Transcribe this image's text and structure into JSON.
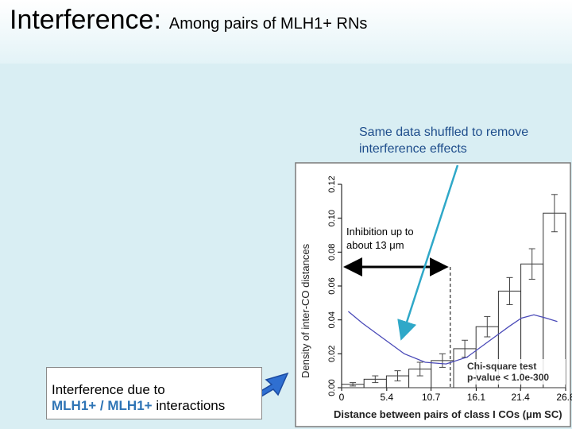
{
  "slide": {
    "title_main": "Interference:",
    "title_sub": "Among pairs of MLH1+ RNs",
    "shuffle_note": "Same data shuffled to remove interference effects",
    "interference_note": {
      "line1": "Interference due to",
      "pair": "MLH1+ / MLH1+",
      "suffix": "interactions"
    },
    "arrow_icon": "blue-arrow-icon",
    "colors": {
      "background": "#d9eef3",
      "accent_blue": "#1f4e8c",
      "arrow_blue": "#2f6fd1",
      "callout_line": "#2fa8c8",
      "curve": "#4a4ab8"
    }
  },
  "chart_data": {
    "type": "bar",
    "ylabel": "Density of inter-CO distances",
    "xlabel": "Distance between pairs of class I COs (μm SC)",
    "ylim": [
      0,
      0.12
    ],
    "xlim": [
      0,
      26.8
    ],
    "x_ticks": [
      "0",
      "5.4",
      "10.7",
      "16.1",
      "21.4",
      "26.8"
    ],
    "y_ticks": [
      "0.00",
      "0.02",
      "0.04",
      "0.06",
      "0.08",
      "0.10",
      "0.12"
    ],
    "bin_width": 2.68,
    "bars": [
      {
        "start": 0.0,
        "value": 0.002,
        "err": 0.001
      },
      {
        "start": 2.68,
        "value": 0.005,
        "err": 0.002
      },
      {
        "start": 5.36,
        "value": 0.007,
        "err": 0.003
      },
      {
        "start": 8.04,
        "value": 0.011,
        "err": 0.004
      },
      {
        "start": 10.72,
        "value": 0.016,
        "err": 0.004
      },
      {
        "start": 13.4,
        "value": 0.023,
        "err": 0.005
      },
      {
        "start": 16.08,
        "value": 0.036,
        "err": 0.006
      },
      {
        "start": 18.76,
        "value": 0.057,
        "err": 0.008
      },
      {
        "start": 21.44,
        "value": 0.073,
        "err": 0.009
      },
      {
        "start": 24.12,
        "value": 0.103,
        "err": 0.011
      }
    ],
    "shuffled_curve": {
      "x": [
        0.8,
        2.5,
        5.0,
        7.5,
        10.0,
        12.5,
        15.0,
        17.5,
        20.0,
        21.5,
        23.0,
        24.5,
        25.8
      ],
      "y": [
        0.045,
        0.038,
        0.029,
        0.02,
        0.015,
        0.014,
        0.018,
        0.027,
        0.036,
        0.041,
        0.043,
        0.041,
        0.039
      ]
    },
    "inhibition": {
      "label": "Inhibition up to about 13 μm",
      "from": 0.0,
      "to": 13.0
    },
    "test_label": {
      "line1": "Chi-square test",
      "line2": "p-value < 1.0e-300"
    }
  }
}
